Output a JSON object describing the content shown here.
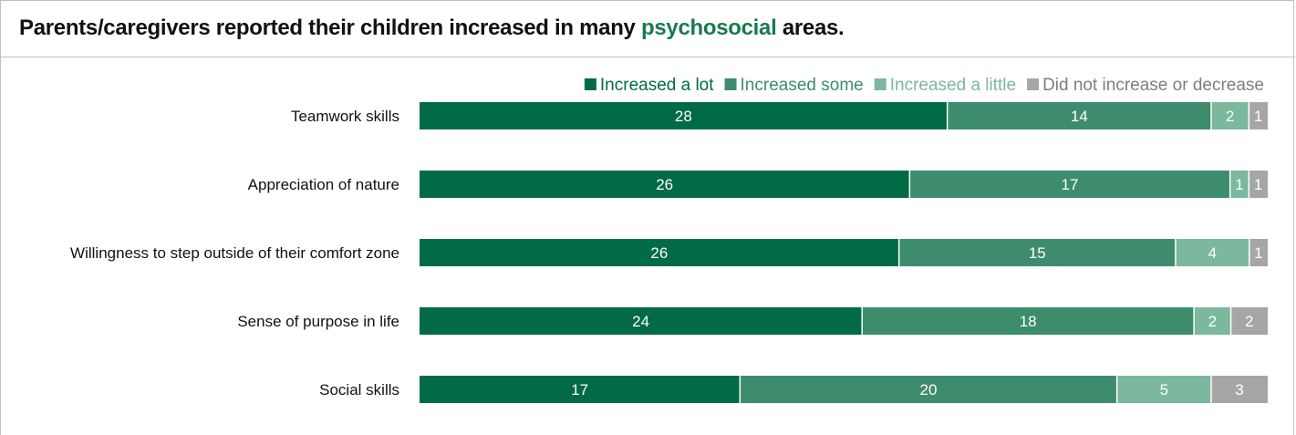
{
  "header": {
    "title_pre": "Parents/caregivers reported their children increased in many ",
    "title_highlight": "psychosocial",
    "title_post": " areas."
  },
  "colors": {
    "highlight": "#1a7a4f"
  },
  "chart_data": {
    "type": "bar",
    "orientation": "horizontal",
    "stacked": true,
    "categories": [
      "Teamwork skills",
      "Appreciation of nature",
      "Willingness to step outside of their comfort zone",
      "Sense of purpose in life",
      "Social skills"
    ],
    "series": [
      {
        "name": "Increased a lot",
        "color": "#006b45",
        "values": [
          28,
          26,
          26,
          24,
          17
        ]
      },
      {
        "name": "Increased some",
        "color": "#3e8c6e",
        "values": [
          14,
          17,
          15,
          18,
          20
        ]
      },
      {
        "name": "Increased a little",
        "color": "#7bb89d",
        "values": [
          2,
          1,
          4,
          2,
          5
        ]
      },
      {
        "name": "Did not increase or decrease",
        "color": "#a6a6a6",
        "values": [
          1,
          1,
          1,
          2,
          3
        ]
      }
    ],
    "legend_position": "top-right",
    "grid": false
  }
}
